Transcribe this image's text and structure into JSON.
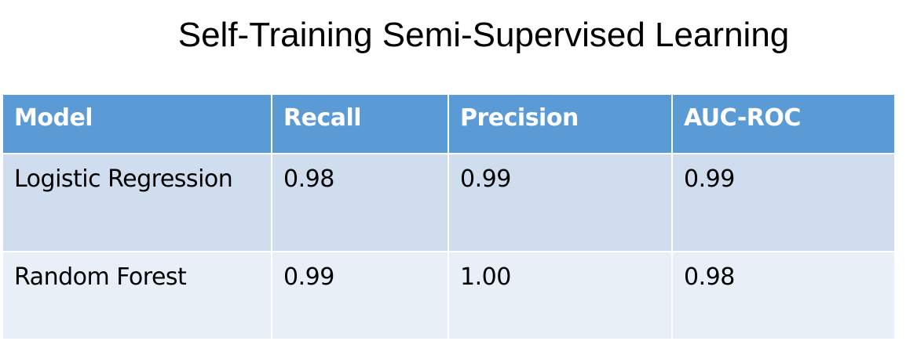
{
  "title": "Self-Training Semi-Supervised Learning",
  "table": {
    "headers": [
      "Model",
      "Recall",
      "Precision",
      "AUC-ROC"
    ],
    "rows": [
      [
        "Logistic Regression",
        "0.98",
        "0.99",
        "0.99"
      ],
      [
        "Random Forest",
        "0.99",
        "1.00",
        "0.98"
      ]
    ]
  },
  "colors": {
    "header_bg": "#5b9bd5",
    "row1_bg": "#d0ddee",
    "row2_bg": "#e9eff7",
    "header_text": "#ffffff",
    "body_text": "#000000"
  }
}
